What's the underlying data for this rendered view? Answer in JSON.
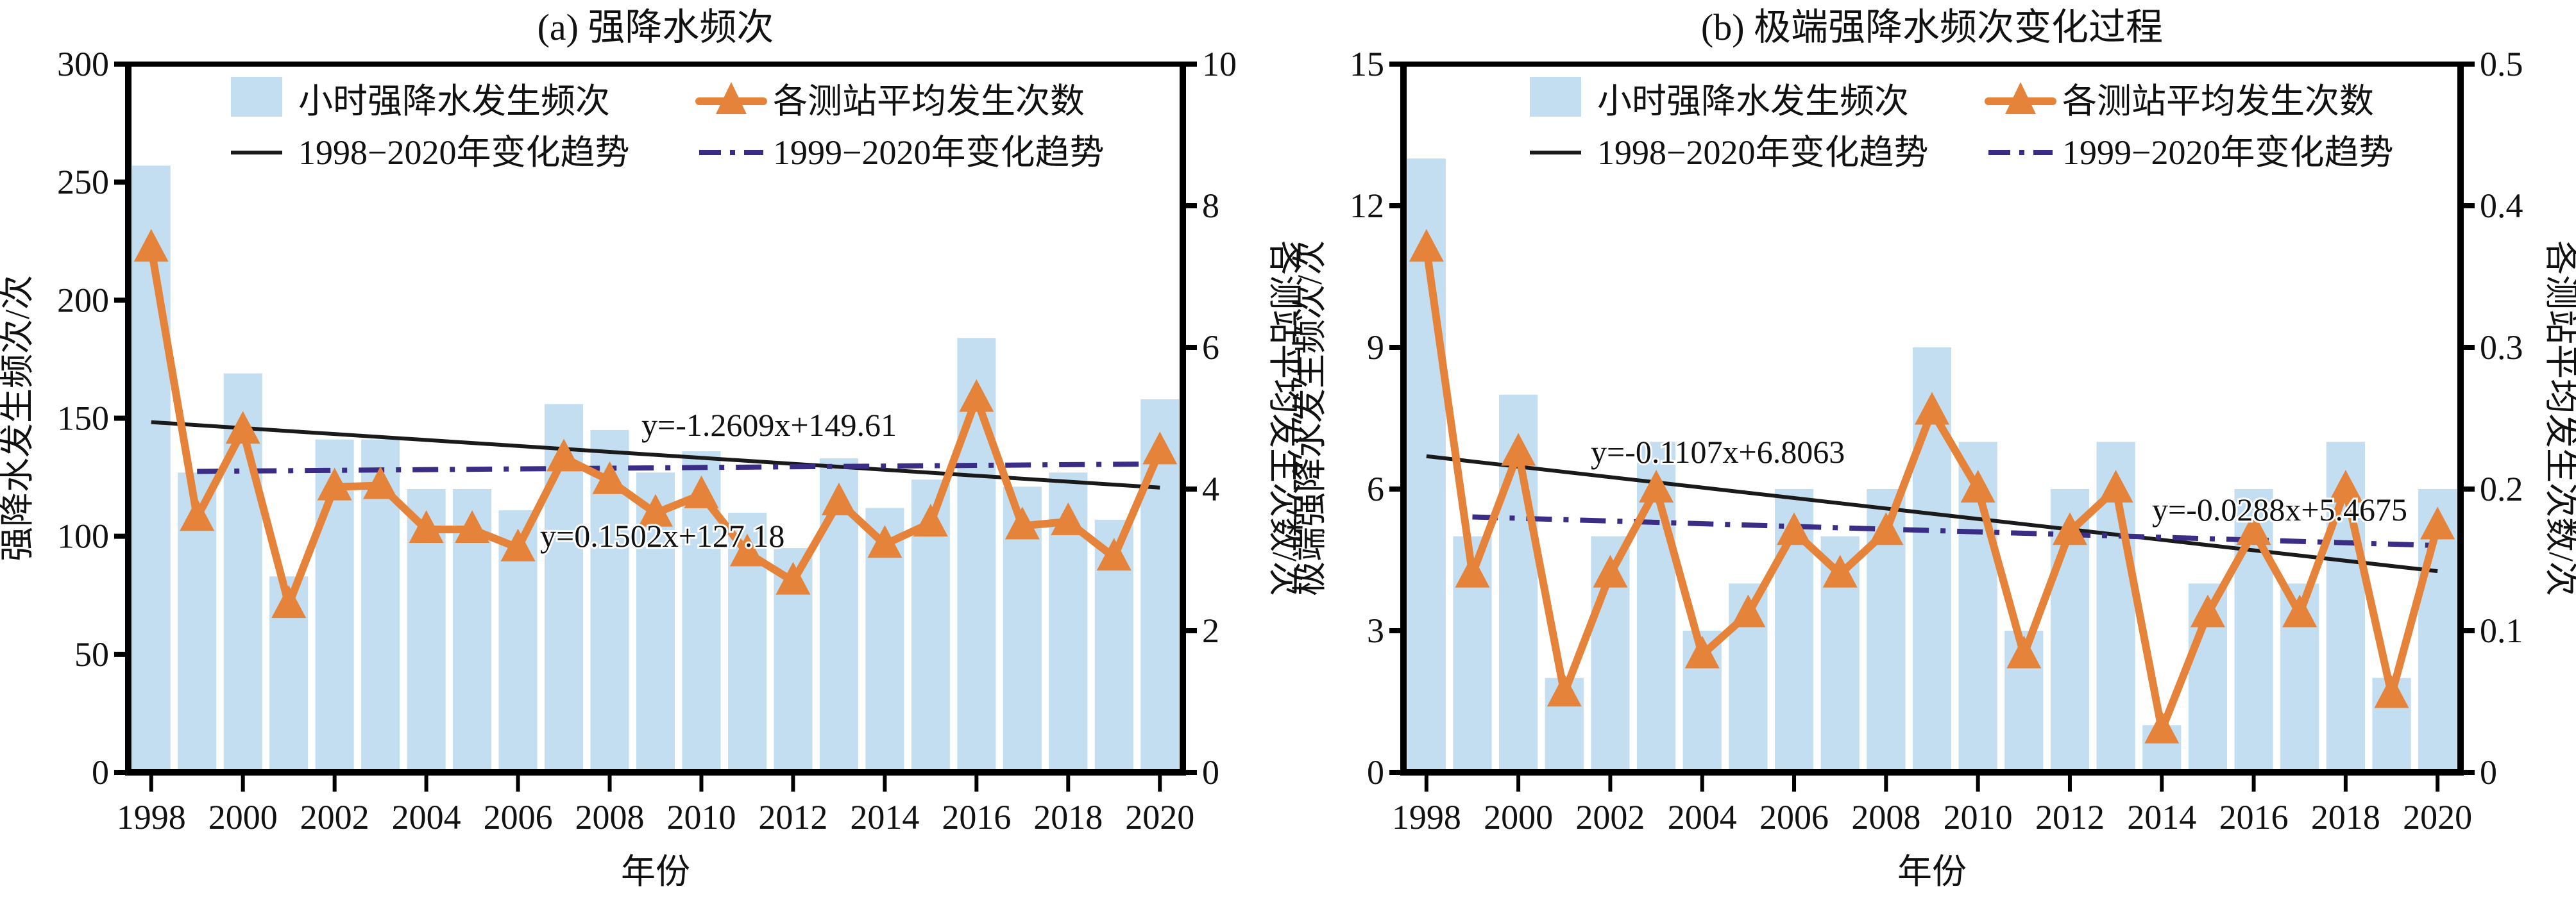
{
  "colors": {
    "bar": "#c3def0",
    "line": "#e5833a",
    "trend_full": "#1a1a1a",
    "trend_partial": "#3b2d86",
    "axis": "#000000"
  },
  "legend": {
    "bars": "小时强降水发生频次",
    "line": "各测站平均发生次数",
    "trend_full": "1998−2020年变化趋势",
    "trend_partial": "1999−2020年变化趋势"
  },
  "chart_data": [
    {
      "id": "a",
      "type": "bar",
      "title": "(a) 强降水频次",
      "xlabel": "年份",
      "ylabel": "强降水发生频次/次",
      "y2label": "各测站平均发生次数/次",
      "categories": [
        "1998",
        "1999",
        "2000",
        "2001",
        "2002",
        "2003",
        "2004",
        "2005",
        "2006",
        "2007",
        "2008",
        "2009",
        "2010",
        "2011",
        "2012",
        "2013",
        "2014",
        "2015",
        "2016",
        "2017",
        "2018",
        "2019",
        "2020"
      ],
      "xticks": [
        "1998",
        "2000",
        "2002",
        "2004",
        "2006",
        "2008",
        "2010",
        "2012",
        "2014",
        "2016",
        "2018",
        "2020"
      ],
      "ylim": [
        0,
        300
      ],
      "yticks": [
        "0",
        "50",
        "100",
        "150",
        "200",
        "250",
        "300"
      ],
      "y2lim": [
        0,
        10
      ],
      "y2ticks": [
        "0",
        "2",
        "4",
        "6",
        "8",
        "10"
      ],
      "series": [
        {
          "name": "小时强降水发生频次",
          "type": "bar",
          "axis": "left",
          "values": [
            257,
            127,
            169,
            83,
            141,
            141,
            120,
            120,
            111,
            156,
            145,
            127,
            136,
            110,
            95,
            133,
            112,
            124,
            184,
            121,
            127,
            107,
            158
          ]
        },
        {
          "name": "各测站平均发生次数",
          "type": "line",
          "axis": "right",
          "values": [
            7.4,
            3.6,
            4.83,
            2.37,
            4.03,
            4.05,
            3.43,
            3.43,
            3.17,
            4.44,
            4.12,
            3.66,
            3.92,
            3.1,
            2.7,
            3.82,
            3.22,
            3.52,
            5.28,
            3.48,
            3.54,
            3.04,
            4.54
          ]
        }
      ],
      "trends": [
        {
          "name": "1998−2020年变化趋势",
          "slope": -1.2609,
          "intercept": 149.61,
          "from": 1998,
          "to": 2020,
          "label": "y=-1.2609x+149.61"
        },
        {
          "name": "1999−2020年变化趋势",
          "slope": 0.1502,
          "intercept": 127.18,
          "from": 1999,
          "to": 2020,
          "label": "y=0.1502x+127.18"
        }
      ]
    },
    {
      "id": "b",
      "type": "bar",
      "title": "(b) 极端强降水频次变化过程",
      "xlabel": "年份",
      "ylabel": "极端强降水发生频次/次",
      "y2label": "各测站平均发生次数/次",
      "categories": [
        "1998",
        "1999",
        "2000",
        "2001",
        "2002",
        "2003",
        "2004",
        "2005",
        "2006",
        "2007",
        "2008",
        "2009",
        "2010",
        "2011",
        "2012",
        "2013",
        "2014",
        "2015",
        "2016",
        "2017",
        "2018",
        "2019",
        "2020"
      ],
      "xticks": [
        "1998",
        "2000",
        "2002",
        "2004",
        "2006",
        "2008",
        "2010",
        "2012",
        "2014",
        "2016",
        "2018",
        "2020"
      ],
      "ylim": [
        0,
        15
      ],
      "yticks": [
        "0",
        "3",
        "6",
        "9",
        "12",
        "15"
      ],
      "y2lim": [
        0,
        0.5
      ],
      "y2ticks": [
        "0",
        "0.1",
        "0.2",
        "0.3",
        "0.4",
        "0.5"
      ],
      "series": [
        {
          "name": "小时强降水发生频次",
          "type": "bar",
          "axis": "left",
          "values": [
            13,
            5,
            8,
            2,
            5,
            7,
            3,
            4,
            6,
            5,
            6,
            9,
            7,
            3,
            6,
            7,
            1,
            4,
            6,
            4,
            7,
            2,
            6
          ]
        },
        {
          "name": "各测站平均发生次数",
          "type": "line",
          "axis": "right",
          "values": [
            0.37,
            0.14,
            0.226,
            0.056,
            0.14,
            0.2,
            0.083,
            0.112,
            0.17,
            0.14,
            0.17,
            0.255,
            0.2,
            0.083,
            0.17,
            0.2,
            0.03,
            0.112,
            0.17,
            0.112,
            0.2,
            0.055,
            0.174
          ]
        }
      ],
      "trends": [
        {
          "name": "1998−2020年变化趋势",
          "slope": -0.1107,
          "intercept": 6.8063,
          "from": 1998,
          "to": 2020,
          "label": "y=-0.1107x+6.8063"
        },
        {
          "name": "1999−2020年变化趋势",
          "slope": -0.0288,
          "intercept": 5.4675,
          "from": 1999,
          "to": 2020,
          "label": "y=-0.0288x+5.4675"
        }
      ]
    }
  ]
}
